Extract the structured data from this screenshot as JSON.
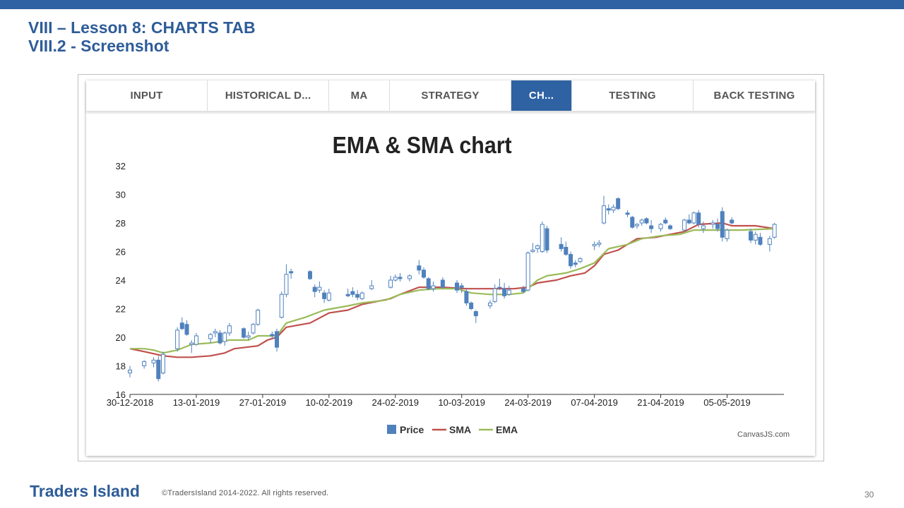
{
  "slide": {
    "title_line1": "VIII – Lesson 8: CHARTS TAB",
    "title_line2": "VIII.2 - Screenshot",
    "footer_brand": "Traders Island",
    "footer_copy": "©TradersIsland 2014-2022. All rights reserved.",
    "page_number": "30"
  },
  "tabs": [
    {
      "label": "INPUT",
      "active": false
    },
    {
      "label": "HISTORICAL D...",
      "active": false
    },
    {
      "label": "MA",
      "active": false
    },
    {
      "label": "STRATEGY",
      "active": false
    },
    {
      "label": "CH...",
      "active": true
    },
    {
      "label": "TESTING",
      "active": false
    },
    {
      "label": "BACK TESTING",
      "active": false
    }
  ],
  "colors": {
    "accent": "#2e62a3",
    "price": "#4f81bd",
    "sma": "#c0504d",
    "ema": "#9bbb59"
  },
  "chart_data": {
    "type": "line",
    "title": "EMA & SMA chart",
    "ylim": [
      16,
      32
    ],
    "yticks": [
      16,
      18,
      20,
      22,
      24,
      26,
      28,
      30,
      32
    ],
    "xlim": [
      "2018-12-30",
      "2019-05-17"
    ],
    "xticks": [
      "30-12-2018",
      "13-01-2019",
      "27-01-2019",
      "10-02-2019",
      "24-02-2019",
      "10-03-2019",
      "24-03-2019",
      "07-04-2019",
      "21-04-2019",
      "05-05-2019"
    ],
    "credit": "CanvasJS.com",
    "legend": {
      "position": "bottom"
    },
    "series": [
      {
        "name": "Price",
        "kind": "candlestick",
        "ohlc": [
          [
            "2018-12-30",
            17.5,
            18.0,
            17.2,
            17.7
          ],
          [
            "2019-01-02",
            18.0,
            18.4,
            17.8,
            18.3
          ],
          [
            "2019-01-04",
            18.2,
            18.6,
            17.9,
            18.4
          ],
          [
            "2019-01-05",
            18.4,
            18.7,
            16.9,
            17.1
          ],
          [
            "2019-01-06",
            17.5,
            19.0,
            17.4,
            18.8
          ],
          [
            "2019-01-09",
            19.2,
            20.7,
            19.0,
            20.5
          ],
          [
            "2019-01-10",
            21.0,
            21.4,
            20.5,
            20.6
          ],
          [
            "2019-01-11",
            20.9,
            21.2,
            20.1,
            20.2
          ],
          [
            "2019-01-12",
            19.5,
            19.8,
            18.9,
            19.6
          ],
          [
            "2019-01-13",
            19.5,
            20.3,
            19.4,
            20.1
          ],
          [
            "2019-01-16",
            19.9,
            20.3,
            19.6,
            20.2
          ],
          [
            "2019-01-17",
            20.3,
            20.6,
            20.0,
            20.4
          ],
          [
            "2019-01-18",
            20.3,
            20.5,
            19.5,
            19.6
          ],
          [
            "2019-01-19",
            19.7,
            20.4,
            19.4,
            20.3
          ],
          [
            "2019-01-20",
            20.3,
            21.0,
            20.1,
            20.8
          ],
          [
            "2019-01-23",
            20.6,
            20.7,
            19.9,
            20.0
          ],
          [
            "2019-01-24",
            20.0,
            20.4,
            19.8,
            20.1
          ],
          [
            "2019-01-25",
            20.3,
            21.0,
            20.2,
            20.9
          ],
          [
            "2019-01-26",
            20.9,
            22.0,
            20.8,
            21.9
          ],
          [
            "2019-01-29",
            20.2,
            20.4,
            19.9,
            20.1
          ],
          [
            "2019-01-30",
            20.4,
            20.6,
            19.0,
            19.3
          ],
          [
            "2019-01-31",
            21.4,
            23.2,
            21.3,
            23.0
          ],
          [
            "2019-02-01",
            23.0,
            25.1,
            22.8,
            24.4
          ],
          [
            "2019-02-02",
            24.6,
            24.8,
            24.1,
            24.5
          ],
          [
            "2019-02-06",
            24.6,
            24.7,
            24.0,
            24.1
          ],
          [
            "2019-02-07",
            23.5,
            23.7,
            22.8,
            23.2
          ],
          [
            "2019-02-08",
            23.3,
            23.9,
            23.1,
            23.5
          ],
          [
            "2019-02-09",
            23.1,
            23.3,
            22.4,
            22.7
          ],
          [
            "2019-02-10",
            22.6,
            23.4,
            22.5,
            23.1
          ],
          [
            "2019-02-14",
            23.0,
            23.4,
            22.8,
            22.9
          ],
          [
            "2019-02-15",
            23.2,
            23.5,
            22.8,
            23.0
          ],
          [
            "2019-02-16",
            23.0,
            23.3,
            22.6,
            22.8
          ],
          [
            "2019-02-17",
            22.7,
            23.2,
            22.6,
            23.1
          ],
          [
            "2019-02-19",
            23.4,
            24.0,
            23.3,
            23.6
          ],
          [
            "2019-02-23",
            23.5,
            24.3,
            23.4,
            24.0
          ],
          [
            "2019-02-24",
            24.0,
            24.4,
            23.9,
            24.2
          ],
          [
            "2019-02-25",
            24.2,
            24.5,
            23.9,
            24.1
          ],
          [
            "2019-02-27",
            24.1,
            24.4,
            23.9,
            24.3
          ],
          [
            "2019-03-01",
            25.0,
            25.4,
            24.4,
            24.7
          ],
          [
            "2019-03-02",
            24.7,
            24.9,
            24.1,
            24.2
          ],
          [
            "2019-03-03",
            24.1,
            24.2,
            23.3,
            23.4
          ],
          [
            "2019-03-04",
            23.4,
            23.9,
            23.2,
            23.6
          ],
          [
            "2019-03-06",
            24.0,
            24.2,
            23.4,
            23.5
          ],
          [
            "2019-03-09",
            23.8,
            24.0,
            23.1,
            23.3
          ],
          [
            "2019-03-10",
            23.6,
            23.8,
            23.1,
            23.5
          ],
          [
            "2019-03-11",
            23.2,
            23.4,
            22.2,
            22.4
          ],
          [
            "2019-03-12",
            22.4,
            22.5,
            21.9,
            22.0
          ],
          [
            "2019-03-13",
            21.8,
            21.9,
            21.0,
            21.5
          ],
          [
            "2019-03-16",
            22.2,
            22.6,
            22.0,
            22.4
          ],
          [
            "2019-03-17",
            22.5,
            23.7,
            22.4,
            23.4
          ],
          [
            "2019-03-18",
            23.5,
            24.1,
            23.3,
            23.5
          ],
          [
            "2019-03-19",
            23.4,
            23.8,
            22.7,
            22.9
          ],
          [
            "2019-03-20",
            23.0,
            23.6,
            22.9,
            23.3
          ],
          [
            "2019-03-23",
            23.4,
            23.6,
            23.1,
            23.2
          ],
          [
            "2019-03-24",
            23.3,
            26.0,
            23.2,
            25.9
          ],
          [
            "2019-03-25",
            26.0,
            26.6,
            25.9,
            26.1
          ],
          [
            "2019-03-26",
            26.2,
            26.5,
            25.9,
            26.4
          ],
          [
            "2019-03-27",
            26.0,
            28.1,
            25.9,
            27.9
          ],
          [
            "2019-03-28",
            27.6,
            27.8,
            25.9,
            26.1
          ],
          [
            "2019-03-31",
            26.5,
            27.0,
            26.0,
            26.2
          ],
          [
            "2019-04-01",
            26.3,
            26.7,
            25.7,
            25.8
          ],
          [
            "2019-04-02",
            25.8,
            26.0,
            24.8,
            25.0
          ],
          [
            "2019-04-03",
            25.2,
            25.4,
            24.9,
            25.1
          ],
          [
            "2019-04-04",
            25.3,
            25.6,
            25.2,
            25.5
          ],
          [
            "2019-04-07",
            26.4,
            26.7,
            26.1,
            26.5
          ],
          [
            "2019-04-08",
            26.5,
            26.8,
            26.3,
            26.6
          ],
          [
            "2019-04-09",
            28.0,
            29.9,
            27.9,
            29.2
          ],
          [
            "2019-04-10",
            29.0,
            29.3,
            28.6,
            28.9
          ],
          [
            "2019-04-11",
            28.9,
            29.3,
            28.7,
            29.1
          ],
          [
            "2019-04-12",
            29.7,
            29.8,
            28.9,
            29.0
          ],
          [
            "2019-04-14",
            28.7,
            28.9,
            28.4,
            28.6
          ],
          [
            "2019-04-15",
            28.4,
            28.5,
            27.6,
            27.7
          ],
          [
            "2019-04-16",
            27.8,
            28.0,
            27.6,
            27.9
          ],
          [
            "2019-04-17",
            28.0,
            28.3,
            27.8,
            28.2
          ],
          [
            "2019-04-18",
            28.3,
            28.4,
            27.9,
            28.0
          ],
          [
            "2019-04-19",
            27.8,
            28.2,
            27.3,
            27.6
          ],
          [
            "2019-04-21",
            27.6,
            28.0,
            27.4,
            27.9
          ],
          [
            "2019-04-22",
            28.2,
            28.4,
            27.9,
            28.0
          ],
          [
            "2019-04-23",
            27.8,
            27.9,
            27.5,
            27.6
          ],
          [
            "2019-04-26",
            27.5,
            28.3,
            27.4,
            28.2
          ],
          [
            "2019-04-27",
            28.2,
            28.6,
            27.9,
            28.0
          ],
          [
            "2019-04-28",
            28.0,
            28.8,
            27.9,
            28.7
          ],
          [
            "2019-04-29",
            28.7,
            28.9,
            27.7,
            27.9
          ],
          [
            "2019-04-30",
            27.6,
            28.1,
            27.3,
            27.8
          ],
          [
            "2019-05-02",
            27.9,
            28.2,
            27.6,
            28.0
          ],
          [
            "2019-05-03",
            27.9,
            28.3,
            27.4,
            27.6
          ],
          [
            "2019-05-04",
            28.8,
            29.1,
            26.7,
            27.0
          ],
          [
            "2019-05-05",
            26.9,
            27.6,
            26.7,
            27.5
          ],
          [
            "2019-05-06",
            28.2,
            28.4,
            27.9,
            28.0
          ],
          [
            "2019-05-10",
            27.4,
            27.6,
            26.6,
            26.8
          ],
          [
            "2019-05-11",
            26.8,
            27.4,
            26.5,
            27.2
          ],
          [
            "2019-05-12",
            27.0,
            27.3,
            26.4,
            26.5
          ],
          [
            "2019-05-14",
            26.5,
            27.1,
            26.0,
            26.9
          ],
          [
            "2019-05-15",
            27.0,
            28.0,
            26.9,
            27.9
          ]
        ]
      },
      {
        "name": "SMA",
        "kind": "line",
        "points": [
          [
            "2018-12-30",
            19.2
          ],
          [
            "2019-01-02",
            19.0
          ],
          [
            "2019-01-06",
            18.7
          ],
          [
            "2019-01-09",
            18.6
          ],
          [
            "2019-01-12",
            18.6
          ],
          [
            "2019-01-16",
            18.7
          ],
          [
            "2019-01-19",
            18.9
          ],
          [
            "2019-01-21",
            19.2
          ],
          [
            "2019-01-26",
            19.4
          ],
          [
            "2019-01-28",
            19.8
          ],
          [
            "2019-01-30",
            20.0
          ],
          [
            "2019-02-01",
            20.7
          ],
          [
            "2019-02-06",
            21.0
          ],
          [
            "2019-02-10",
            21.7
          ],
          [
            "2019-02-14",
            21.9
          ],
          [
            "2019-02-17",
            22.3
          ],
          [
            "2019-02-23",
            22.7
          ],
          [
            "2019-02-25",
            23.0
          ],
          [
            "2019-03-01",
            23.5
          ],
          [
            "2019-03-06",
            23.5
          ],
          [
            "2019-03-11",
            23.4
          ],
          [
            "2019-03-16",
            23.4
          ],
          [
            "2019-03-21",
            23.4
          ],
          [
            "2019-03-24",
            23.5
          ],
          [
            "2019-03-26",
            23.8
          ],
          [
            "2019-03-30",
            24.0
          ],
          [
            "2019-04-02",
            24.3
          ],
          [
            "2019-04-05",
            24.5
          ],
          [
            "2019-04-07",
            25.0
          ],
          [
            "2019-04-09",
            25.8
          ],
          [
            "2019-04-12",
            26.1
          ],
          [
            "2019-04-16",
            26.9
          ],
          [
            "2019-04-20",
            27.0
          ],
          [
            "2019-04-23",
            27.2
          ],
          [
            "2019-04-26",
            27.4
          ],
          [
            "2019-04-29",
            27.9
          ],
          [
            "2019-05-04",
            28.0
          ],
          [
            "2019-05-06",
            27.8
          ],
          [
            "2019-05-11",
            27.8
          ],
          [
            "2019-05-15",
            27.6
          ]
        ]
      },
      {
        "name": "EMA",
        "kind": "line",
        "points": [
          [
            "2018-12-30",
            19.2
          ],
          [
            "2019-01-02",
            19.2
          ],
          [
            "2019-01-04",
            19.1
          ],
          [
            "2019-01-06",
            18.9
          ],
          [
            "2019-01-09",
            19.1
          ],
          [
            "2019-01-12",
            19.5
          ],
          [
            "2019-01-16",
            19.6
          ],
          [
            "2019-01-20",
            19.8
          ],
          [
            "2019-01-24",
            19.8
          ],
          [
            "2019-01-26",
            20.1
          ],
          [
            "2019-01-30",
            20.1
          ],
          [
            "2019-02-01",
            21.0
          ],
          [
            "2019-02-05",
            21.4
          ],
          [
            "2019-02-09",
            21.9
          ],
          [
            "2019-02-14",
            22.2
          ],
          [
            "2019-02-17",
            22.4
          ],
          [
            "2019-02-22",
            22.6
          ],
          [
            "2019-02-25",
            23.0
          ],
          [
            "2019-03-01",
            23.3
          ],
          [
            "2019-03-05",
            23.4
          ],
          [
            "2019-03-09",
            23.4
          ],
          [
            "2019-03-12",
            23.1
          ],
          [
            "2019-03-16",
            23.0
          ],
          [
            "2019-03-20",
            23.0
          ],
          [
            "2019-03-23",
            23.1
          ],
          [
            "2019-03-26",
            24.0
          ],
          [
            "2019-03-28",
            24.3
          ],
          [
            "2019-04-01",
            24.5
          ],
          [
            "2019-04-04",
            24.8
          ],
          [
            "2019-04-07",
            25.2
          ],
          [
            "2019-04-10",
            26.2
          ],
          [
            "2019-04-14",
            26.5
          ],
          [
            "2019-04-17",
            26.9
          ],
          [
            "2019-04-21",
            27.1
          ],
          [
            "2019-04-25",
            27.2
          ],
          [
            "2019-04-28",
            27.5
          ],
          [
            "2019-05-04",
            27.5
          ],
          [
            "2019-05-08",
            27.5
          ],
          [
            "2019-05-15",
            27.6
          ]
        ]
      }
    ]
  }
}
